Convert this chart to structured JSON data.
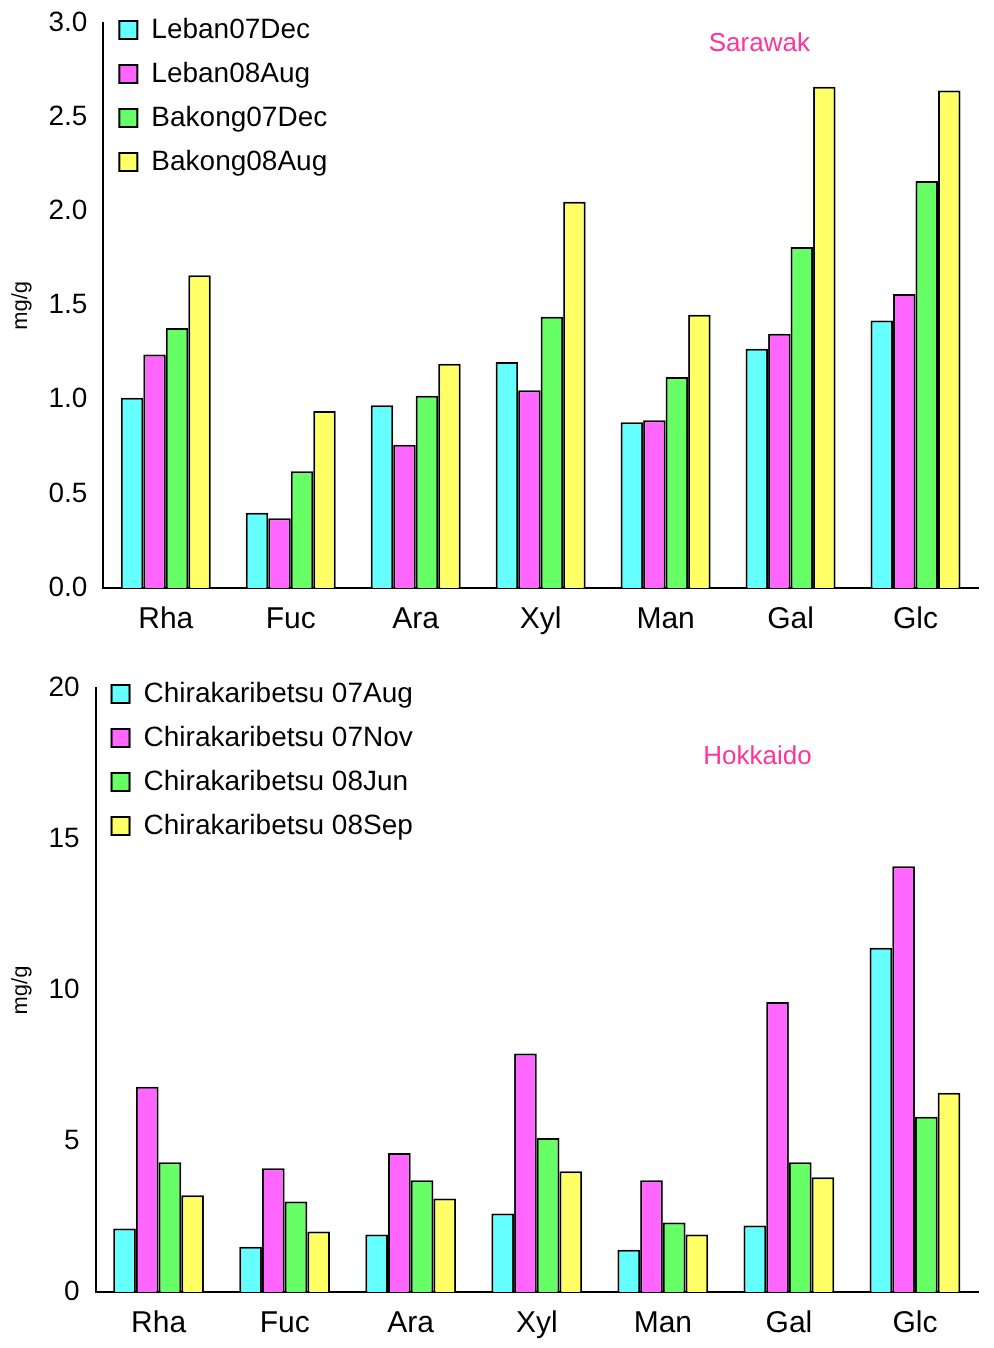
{
  "chart_data": [
    {
      "type": "bar",
      "ylabel": "mg/g",
      "annotations": [
        "Sarawak"
      ],
      "categories": [
        "Rha",
        "Fuc",
        "Ara",
        "Xyl",
        "Man",
        "Gal",
        "Glc"
      ],
      "series": [
        {
          "name": "Leban07Dec",
          "color": "#66ffff",
          "values": [
            1.01,
            0.4,
            0.97,
            1.2,
            0.88,
            1.27,
            1.42
          ]
        },
        {
          "name": "Leban08Aug",
          "color": "#ff66ff",
          "values": [
            1.24,
            0.37,
            0.76,
            1.05,
            0.89,
            1.35,
            1.56
          ]
        },
        {
          "name": "Bakong07Dec",
          "color": "#66ff66",
          "values": [
            1.38,
            0.62,
            1.02,
            1.44,
            1.12,
            1.81,
            2.16
          ]
        },
        {
          "name": "Bakong08Aug",
          "color": "#ffff66",
          "values": [
            1.66,
            0.94,
            1.19,
            2.05,
            1.45,
            2.66,
            2.64
          ]
        }
      ],
      "ylim": [
        0,
        3
      ],
      "yticks": [
        {
          "value": 0,
          "label": "0.0"
        },
        {
          "value": 0.5,
          "label": "0.5"
        },
        {
          "value": 1,
          "label": "1.0"
        },
        {
          "value": 1.5,
          "label": "1.5"
        },
        {
          "value": 2,
          "label": "2.0"
        },
        {
          "value": 2.5,
          "label": "2.5"
        },
        {
          "value": 3,
          "label": "3.0"
        }
      ],
      "grid": false,
      "legend": "top left"
    },
    {
      "type": "bar",
      "ylabel": "mg/g",
      "annotations": [
        "Hokkaido"
      ],
      "categories": [
        "Rha",
        "Fuc",
        "Ara",
        "Xyl",
        "Man",
        "Gal",
        "Glc"
      ],
      "series": [
        {
          "name": "Chirakaribetsu 07Aug",
          "color": "#66ffff",
          "values": [
            2.1,
            1.5,
            1.9,
            2.6,
            1.4,
            2.2,
            11.4
          ]
        },
        {
          "name": "Chirakaribetsu 07Nov",
          "color": "#ff66ff",
          "values": [
            6.8,
            4.1,
            4.6,
            7.9,
            3.7,
            9.6,
            14.1
          ]
        },
        {
          "name": "Chirakaribetsu 08Jun",
          "color": "#66ff66",
          "values": [
            4.3,
            3.0,
            3.7,
            5.1,
            2.3,
            4.3,
            5.8
          ]
        },
        {
          "name": "Chirakaribetsu 08Sep",
          "color": "#ffff66",
          "values": [
            3.2,
            2.0,
            3.1,
            4.0,
            1.9,
            3.8,
            6.6
          ]
        }
      ],
      "ylim": [
        0,
        20
      ],
      "yticks": [
        0,
        5,
        10,
        15,
        20
      ],
      "grid": false,
      "legend": "top left"
    }
  ]
}
